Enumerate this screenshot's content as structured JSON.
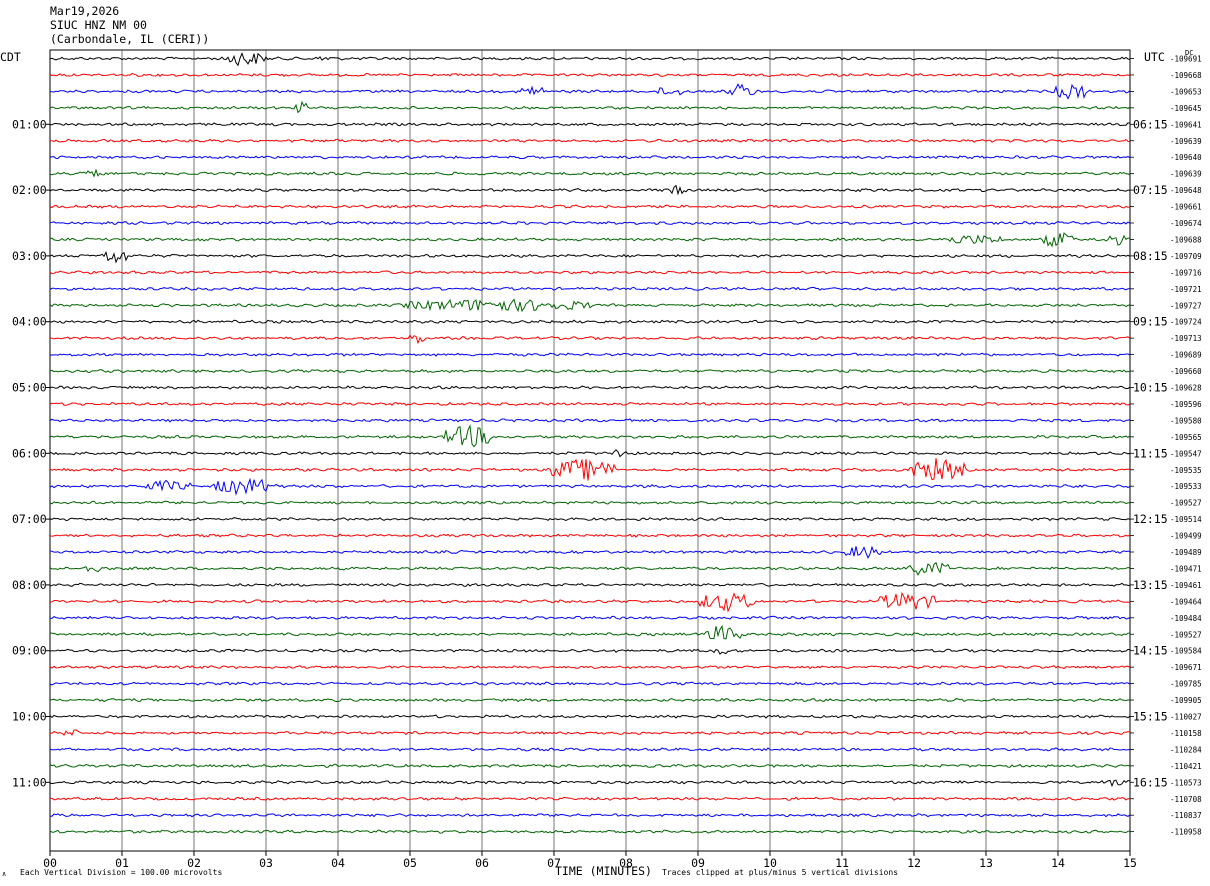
{
  "header": {
    "date": "Mar19,2026",
    "station": "SIUC HNZ NM 00",
    "location": "(Carbondale, IL (CERI))"
  },
  "left_timezone": "CDT",
  "right_timezone": "UTC",
  "dc_label": "DC",
  "footer": {
    "scale_note": "Each Vertical Division =  100.00 microvolts",
    "xaxis_title": "TIME (MINUTES)",
    "clip_note": "Traces clipped at plus/minus 5 vertical divisions",
    "mark": "∧"
  },
  "trace_colors": [
    "#000000",
    "#ff0000",
    "#0000ff",
    "#006400"
  ],
  "chart_data": {
    "type": "line",
    "title": "",
    "xlabel": "TIME (MINUTES)",
    "xlim": [
      0,
      15
    ],
    "x_ticks": [
      "00",
      "01",
      "02",
      "03",
      "04",
      "05",
      "06",
      "07",
      "08",
      "09",
      "10",
      "11",
      "12",
      "13",
      "14",
      "15"
    ],
    "grid": true,
    "left_hour_labels": [
      "01:00",
      "02:00",
      "03:00",
      "04:00",
      "05:00",
      "06:00",
      "07:00",
      "08:00",
      "09:00",
      "10:00",
      "11:00"
    ],
    "right_hour_labels": [
      "06:15",
      "07:15",
      "08:15",
      "09:15",
      "10:15",
      "11:15",
      "12:15",
      "13:15",
      "14:15",
      "15:15",
      "16:15"
    ],
    "dc_offsets": [
      "-109691",
      "-109668",
      "-109653",
      "-109645",
      "-109641",
      "-109639",
      "-109640",
      "-109639",
      "-109648",
      "-109661",
      "-109674",
      "-109688",
      "-109709",
      "-109716",
      "-109721",
      "-109727",
      "-109724",
      "-109713",
      "-109689",
      "-109660",
      "-109628",
      "-109596",
      "-109580",
      "-109565",
      "-109547",
      "-109535",
      "-109533",
      "-109527",
      "-109514",
      "-109499",
      "-109489",
      "-109471",
      "-109461",
      "-109464",
      "-109484",
      "-109527",
      "-109584",
      "-109671",
      "-109785",
      "-109905",
      "-110027",
      "-110158",
      "-110284",
      "-110421",
      "-110573",
      "-110708",
      "-110837",
      "-110958"
    ],
    "events": [
      {
        "trace": 0,
        "minute": 2.7,
        "amp": 8,
        "dur": 0.5
      },
      {
        "trace": 0,
        "minute": 3.8,
        "amp": 4,
        "dur": 0.1
      },
      {
        "trace": 2,
        "minute": 6.7,
        "amp": 6,
        "dur": 0.3
      },
      {
        "trace": 2,
        "minute": 8.6,
        "amp": 6,
        "dur": 0.3
      },
      {
        "trace": 2,
        "minute": 9.6,
        "amp": 8,
        "dur": 0.3
      },
      {
        "trace": 2,
        "minute": 14.2,
        "amp": 9,
        "dur": 0.4
      },
      {
        "trace": 3,
        "minute": 3.5,
        "amp": 6,
        "dur": 0.1
      },
      {
        "trace": 7,
        "minute": 0.6,
        "amp": 4,
        "dur": 0.3
      },
      {
        "trace": 8,
        "minute": 8.7,
        "amp": 5,
        "dur": 0.2
      },
      {
        "trace": 11,
        "minute": 12.8,
        "amp": 5,
        "dur": 0.8
      },
      {
        "trace": 11,
        "minute": 14.0,
        "amp": 9,
        "dur": 0.3
      },
      {
        "trace": 11,
        "minute": 14.8,
        "amp": 6,
        "dur": 0.2
      },
      {
        "trace": 12,
        "minute": 0.9,
        "amp": 8,
        "dur": 0.3
      },
      {
        "trace": 15,
        "minute": 6.2,
        "amp": 7,
        "dur": 2.5
      },
      {
        "trace": 17,
        "minute": 5.1,
        "amp": 6,
        "dur": 0.1
      },
      {
        "trace": 23,
        "minute": 5.8,
        "amp": 12,
        "dur": 0.6
      },
      {
        "trace": 24,
        "minute": 7.9,
        "amp": 6,
        "dur": 0.2
      },
      {
        "trace": 25,
        "minute": 7.4,
        "amp": 12,
        "dur": 0.8
      },
      {
        "trace": 25,
        "minute": 12.3,
        "amp": 12,
        "dur": 0.7
      },
      {
        "trace": 26,
        "minute": 1.6,
        "amp": 6,
        "dur": 0.6
      },
      {
        "trace": 26,
        "minute": 2.7,
        "amp": 9,
        "dur": 0.8
      },
      {
        "trace": 30,
        "minute": 11.3,
        "amp": 7,
        "dur": 0.4
      },
      {
        "trace": 31,
        "minute": 12.2,
        "amp": 8,
        "dur": 0.5
      },
      {
        "trace": 31,
        "minute": 0.6,
        "amp": 4,
        "dur": 0.3
      },
      {
        "trace": 33,
        "minute": 9.4,
        "amp": 10,
        "dur": 0.7
      },
      {
        "trace": 33,
        "minute": 11.9,
        "amp": 10,
        "dur": 0.7
      },
      {
        "trace": 35,
        "minute": 9.3,
        "amp": 9,
        "dur": 0.5
      },
      {
        "trace": 36,
        "minute": 9.3,
        "amp": 4,
        "dur": 0.2
      },
      {
        "trace": 41,
        "minute": 0.3,
        "amp": 4,
        "dur": 0.2
      },
      {
        "trace": 44,
        "minute": 14.8,
        "amp": 4,
        "dur": 0.4
      }
    ]
  }
}
